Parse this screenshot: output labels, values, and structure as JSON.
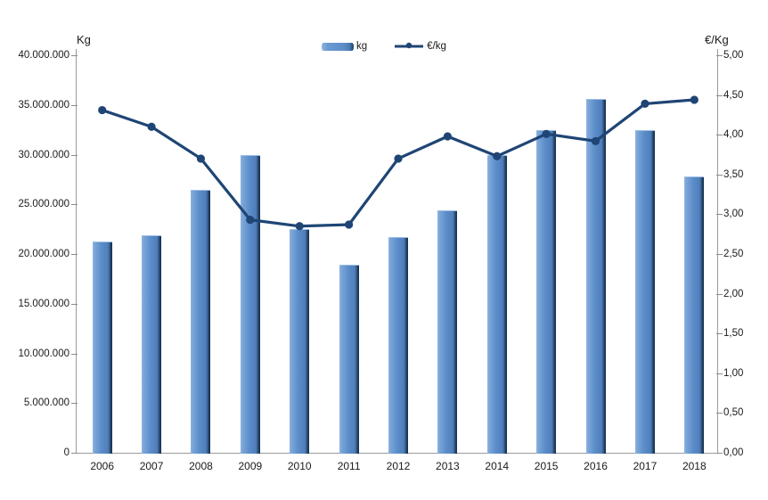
{
  "chart_data": {
    "type": "combo-bar-line",
    "title": "",
    "categories": [
      "2006",
      "2007",
      "2008",
      "2009",
      "2010",
      "2011",
      "2012",
      "2013",
      "2014",
      "2015",
      "2016",
      "2017",
      "2018"
    ],
    "series": [
      {
        "name": "kg",
        "type": "bar",
        "axis": "left",
        "values": [
          21300000,
          21900000,
          26500000,
          30000000,
          22500000,
          18900000,
          21700000,
          24400000,
          30000000,
          32500000,
          35600000,
          32500000,
          27800000
        ]
      },
      {
        "name": "€/kg",
        "type": "line",
        "axis": "right",
        "values": [
          4.31,
          4.1,
          3.7,
          2.93,
          2.85,
          2.87,
          3.7,
          3.98,
          3.73,
          4.01,
          3.92,
          4.39,
          4.44
        ]
      }
    ],
    "left_axis": {
      "title": "Kg",
      "min": 0,
      "max": 40000000,
      "step": 5000000,
      "tick_labels": [
        "40.000.000",
        "35.000.000",
        "30.000.000",
        "25.000.000",
        "20.000.000",
        "15.000.000",
        "10.000.000",
        "5.000.000",
        "0"
      ]
    },
    "right_axis": {
      "title": "€/Kg",
      "min": 0,
      "max": 5,
      "step": 0.5,
      "tick_labels": [
        "5,00",
        "4,50",
        "4,00",
        "3,50",
        "3,00",
        "2,50",
        "2,00",
        "1,50",
        "1,00",
        "0,50",
        "0,00"
      ]
    },
    "legend": {
      "position": "top-center",
      "items": [
        {
          "label": "kg",
          "marker": "bar-swatch"
        },
        {
          "label": "€/kg",
          "marker": "line-marker-swatch"
        }
      ]
    },
    "grid": false,
    "colors": {
      "bar_fill": "#5b8dc9",
      "bar_highlight": "#8fb3df",
      "bar_shadow": "#1e3c61",
      "line": "#1f4575",
      "axis": "#9a9a9a",
      "text": "#000000",
      "background": "#ffffff"
    }
  }
}
